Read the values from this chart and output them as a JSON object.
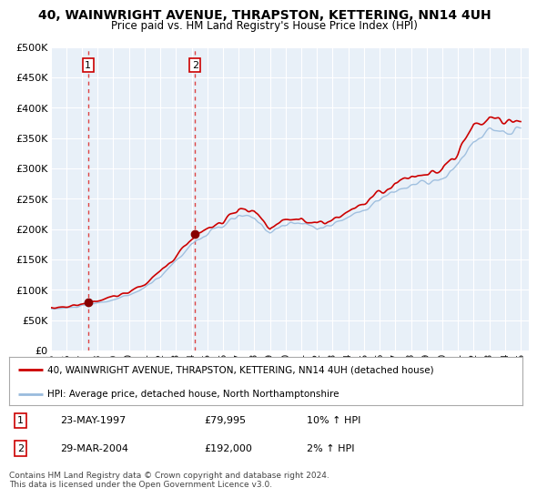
{
  "title": "40, WAINWRIGHT AVENUE, THRAPSTON, KETTERING, NN14 4UH",
  "subtitle": "Price paid vs. HM Land Registry's House Price Index (HPI)",
  "legend_line1": "40, WAINWRIGHT AVENUE, THRAPSTON, KETTERING, NN14 4UH (detached house)",
  "legend_line2": "HPI: Average price, detached house, North Northamptonshire",
  "table_row1": [
    "1",
    "23-MAY-1997",
    "£79,995",
    "10% ↑ HPI"
  ],
  "table_row2": [
    "2",
    "29-MAR-2004",
    "£192,000",
    "2% ↑ HPI"
  ],
  "copyright": "Contains HM Land Registry data © Crown copyright and database right 2024.\nThis data is licensed under the Open Government Licence v3.0.",
  "background_color": "#e8f0f8",
  "grid_color": "#ffffff",
  "red_line_color": "#cc0000",
  "blue_line_color": "#99bbdd",
  "marker_color": "#880000",
  "dashed_line_color": "#dd4444",
  "x_start": 1995.0,
  "x_end": 2025.5,
  "y_min": 0,
  "y_max": 500000,
  "sale1_x": 1997.386,
  "sale1_y": 79995,
  "sale2_x": 2004.23,
  "sale2_y": 192000,
  "yticks": [
    0,
    50000,
    100000,
    150000,
    200000,
    250000,
    300000,
    350000,
    400000,
    450000,
    500000
  ],
  "ytick_labels": [
    "£0",
    "£50K",
    "£100K",
    "£150K",
    "£200K",
    "£250K",
    "£300K",
    "£350K",
    "£400K",
    "£450K",
    "£500K"
  ],
  "xtick_years": [
    1995,
    1996,
    1997,
    1998,
    1999,
    2000,
    2001,
    2002,
    2003,
    2004,
    2005,
    2006,
    2007,
    2008,
    2009,
    2010,
    2011,
    2012,
    2013,
    2014,
    2015,
    2016,
    2017,
    2018,
    2019,
    2020,
    2021,
    2022,
    2023,
    2024,
    2025
  ]
}
